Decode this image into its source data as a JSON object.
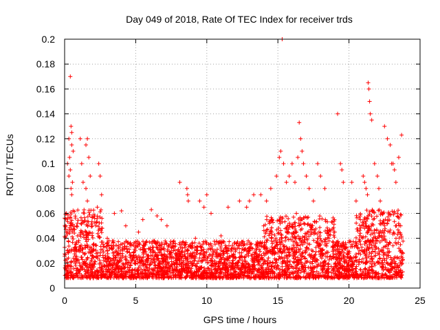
{
  "chart_data": {
    "type": "scatter",
    "title": "Day 049 of 2018, Rate Of TEC Index for receiver trds",
    "xlabel": "GPS time / hours",
    "ylabel": "ROTI / TECUs",
    "xlim": [
      0,
      25
    ],
    "ylim": [
      0,
      0.2
    ],
    "xticks": [
      "0",
      "5",
      "10",
      "15",
      "20",
      "25"
    ],
    "yticks": [
      "0",
      "0.02",
      "0.04",
      "0.06",
      "0.08",
      "0.1",
      "0.12",
      "0.14",
      "0.16",
      "0.18",
      "0.2"
    ],
    "grid": true,
    "marker": "+",
    "color": "#ff0000",
    "series": [
      {
        "x": [
          0.2,
          0.3,
          0.35,
          0.4,
          0.45,
          0.5,
          0.4,
          0.55,
          0.3,
          0.5,
          0.6,
          0.45,
          0.5,
          1.1,
          1.2,
          1.3,
          1.5,
          1.6,
          1.7,
          1.8,
          1.5,
          1.6,
          2.4,
          2.5,
          2.6,
          2.3,
          3.5,
          4.0,
          4.3,
          5.5,
          6.1,
          6.5,
          6.8,
          7.2,
          8.1,
          8.6,
          8.65,
          8.7,
          9.5,
          9.8,
          10.0,
          10.3,
          11.5,
          12.3,
          12.8,
          13.0,
          13.3,
          13.8,
          14.2,
          14.5,
          14.9,
          15.1,
          15.2,
          15.3,
          15.4,
          15.6,
          15.8,
          16.0,
          16.2,
          16.4,
          16.5,
          16.6,
          16.7,
          16.8,
          17.0,
          17.2,
          17.5,
          17.8,
          18.0,
          18.3,
          19.2,
          19.4,
          19.5,
          19.6,
          20.2,
          20.5,
          21.0,
          21.1,
          21.2,
          21.3,
          21.35,
          21.4,
          21.45,
          21.5,
          21.6,
          21.8,
          22.0,
          22.1,
          22.2,
          22.3,
          22.5,
          22.7,
          22.9,
          23.0,
          23.1,
          23.2,
          23.3,
          23.5,
          23.7,
          0.2,
          0.8,
          1.5,
          3.0,
          5.2,
          9.2,
          11.0,
          14.0,
          16.3,
          19.0,
          20.8,
          22.4,
          23.4
        ],
        "y": [
          0.1,
          0.09,
          0.105,
          0.17,
          0.13,
          0.125,
          0.095,
          0.085,
          0.12,
          0.115,
          0.11,
          0.08,
          0.075,
          0.12,
          0.1,
          0.085,
          0.115,
          0.12,
          0.105,
          0.09,
          0.08,
          0.07,
          0.1,
          0.09,
          0.075,
          0.065,
          0.06,
          0.062,
          0.05,
          0.055,
          0.063,
          0.058,
          0.055,
          0.05,
          0.085,
          0.08,
          0.075,
          0.07,
          0.07,
          0.065,
          0.075,
          0.06,
          0.065,
          0.07,
          0.065,
          0.07,
          0.075,
          0.075,
          0.07,
          0.08,
          0.09,
          0.105,
          0.11,
          0.2,
          0.1,
          0.085,
          0.09,
          0.1,
          0.085,
          0.105,
          0.133,
          0.12,
          0.11,
          0.1,
          0.09,
          0.08,
          0.07,
          0.1,
          0.09,
          0.08,
          0.14,
          0.1,
          0.095,
          0.085,
          0.085,
          0.07,
          0.09,
          0.085,
          0.08,
          0.075,
          0.165,
          0.16,
          0.15,
          0.14,
          0.135,
          0.1,
          0.09,
          0.08,
          0.07,
          0.06,
          0.13,
          0.12,
          0.115,
          0.1,
          0.1,
          0.095,
          0.085,
          0.105,
          0.123,
          0.03,
          0.035,
          0.045,
          0.04,
          0.045,
          0.04,
          0.042,
          0.05,
          0.06,
          0.045,
          0.055,
          0.06,
          0.06
        ]
      }
    ]
  }
}
